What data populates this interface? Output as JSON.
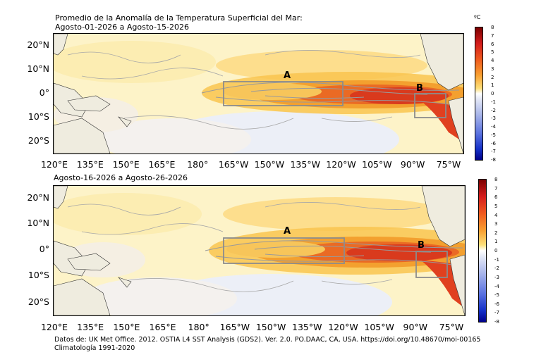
{
  "panel1": {
    "title_line1": "Promedio de la Anomalía de la Temperatura Superficial del Mar:",
    "title_line2": "Agosto-01-2026 a Agosto-15-2026"
  },
  "panel2": {
    "title_line1": "Agosto-16-2026 a Agosto-26-2026"
  },
  "lat_labels": [
    "20°N",
    "10°N",
    "0°",
    "10°S",
    "20°S"
  ],
  "lon_labels": [
    "120°E",
    "135°E",
    "150°E",
    "165°E",
    "180°",
    "165°W",
    "150°W",
    "135°W",
    "120°W",
    "105°W",
    "90°W",
    "75°W"
  ],
  "colorbar": {
    "unit": "ºC",
    "ticks": [
      "8",
      "7",
      "6",
      "5",
      "4",
      "3",
      "2",
      "1",
      "0",
      "-1",
      "-2",
      "-3",
      "-4",
      "-5",
      "-6",
      "-7",
      "-8"
    ]
  },
  "regions": {
    "a_label": "A",
    "b_label": "B"
  },
  "footer": {
    "line1": "Datos de: UK Met Office. 2012. OSTIA L4 SST Analysis (GDS2). Ver. 2.0. PO.DAAC, CA, USA. https://doi.org/10.48670/moi-00165",
    "line2": "Climatología 1991-2020"
  },
  "colors": {
    "land": "#efecdf",
    "box": "#8c8c8c",
    "contour": "#9a9a9a"
  }
}
